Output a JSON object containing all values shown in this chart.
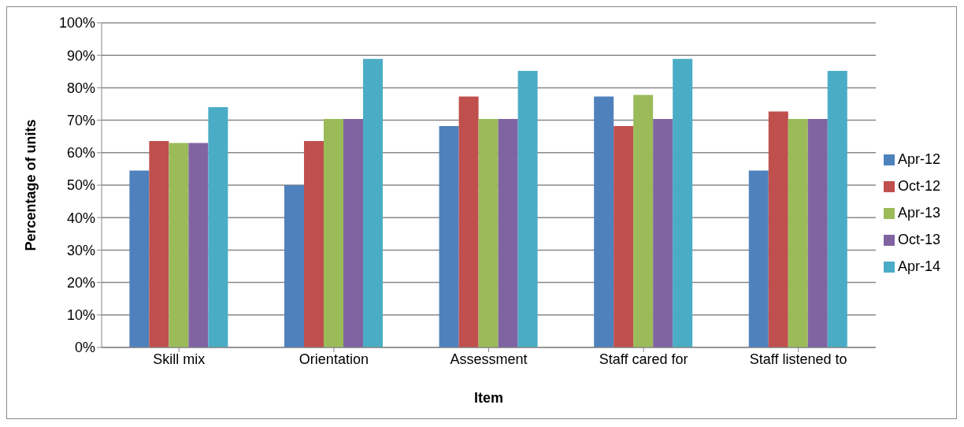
{
  "chart_data": {
    "type": "bar",
    "xlabel": "Item",
    "ylabel": "Percentage of units",
    "categories": [
      "Skill mix",
      "Orientation",
      "Assessment",
      "Staff cared for",
      "Staff listened to"
    ],
    "series": [
      {
        "name": "Apr-12",
        "color": "#4f81bd",
        "values": [
          54.5,
          50,
          68.2,
          77.3,
          54.5
        ]
      },
      {
        "name": "Oct-12",
        "color": "#c0504d",
        "values": [
          63.6,
          63.6,
          77.3,
          68.2,
          72.7
        ]
      },
      {
        "name": "Apr-13",
        "color": "#9bbb59",
        "values": [
          63,
          70.4,
          70.4,
          77.8,
          70.4
        ]
      },
      {
        "name": "Oct-13",
        "color": "#8064a2",
        "values": [
          63,
          70.4,
          70.4,
          70.4,
          70.4
        ]
      },
      {
        "name": "Apr-14",
        "color": "#4bacc6",
        "values": [
          74,
          88.9,
          85.2,
          88.9,
          85.2
        ]
      }
    ],
    "ylim": [
      0,
      100
    ],
    "yticks": [
      {
        "value": 0,
        "label": "0%"
      },
      {
        "value": 10,
        "label": "10%"
      },
      {
        "value": 20,
        "label": "20%"
      },
      {
        "value": 30,
        "label": "30%"
      },
      {
        "value": 40,
        "label": "40%"
      },
      {
        "value": 50,
        "label": "50%"
      },
      {
        "value": 60,
        "label": "60%"
      },
      {
        "value": 70,
        "label": "70%"
      },
      {
        "value": 80,
        "label": "80%"
      },
      {
        "value": 90,
        "label": "90%"
      },
      {
        "value": 100,
        "label": "100%"
      }
    ],
    "grid": "y",
    "legend": "right"
  }
}
